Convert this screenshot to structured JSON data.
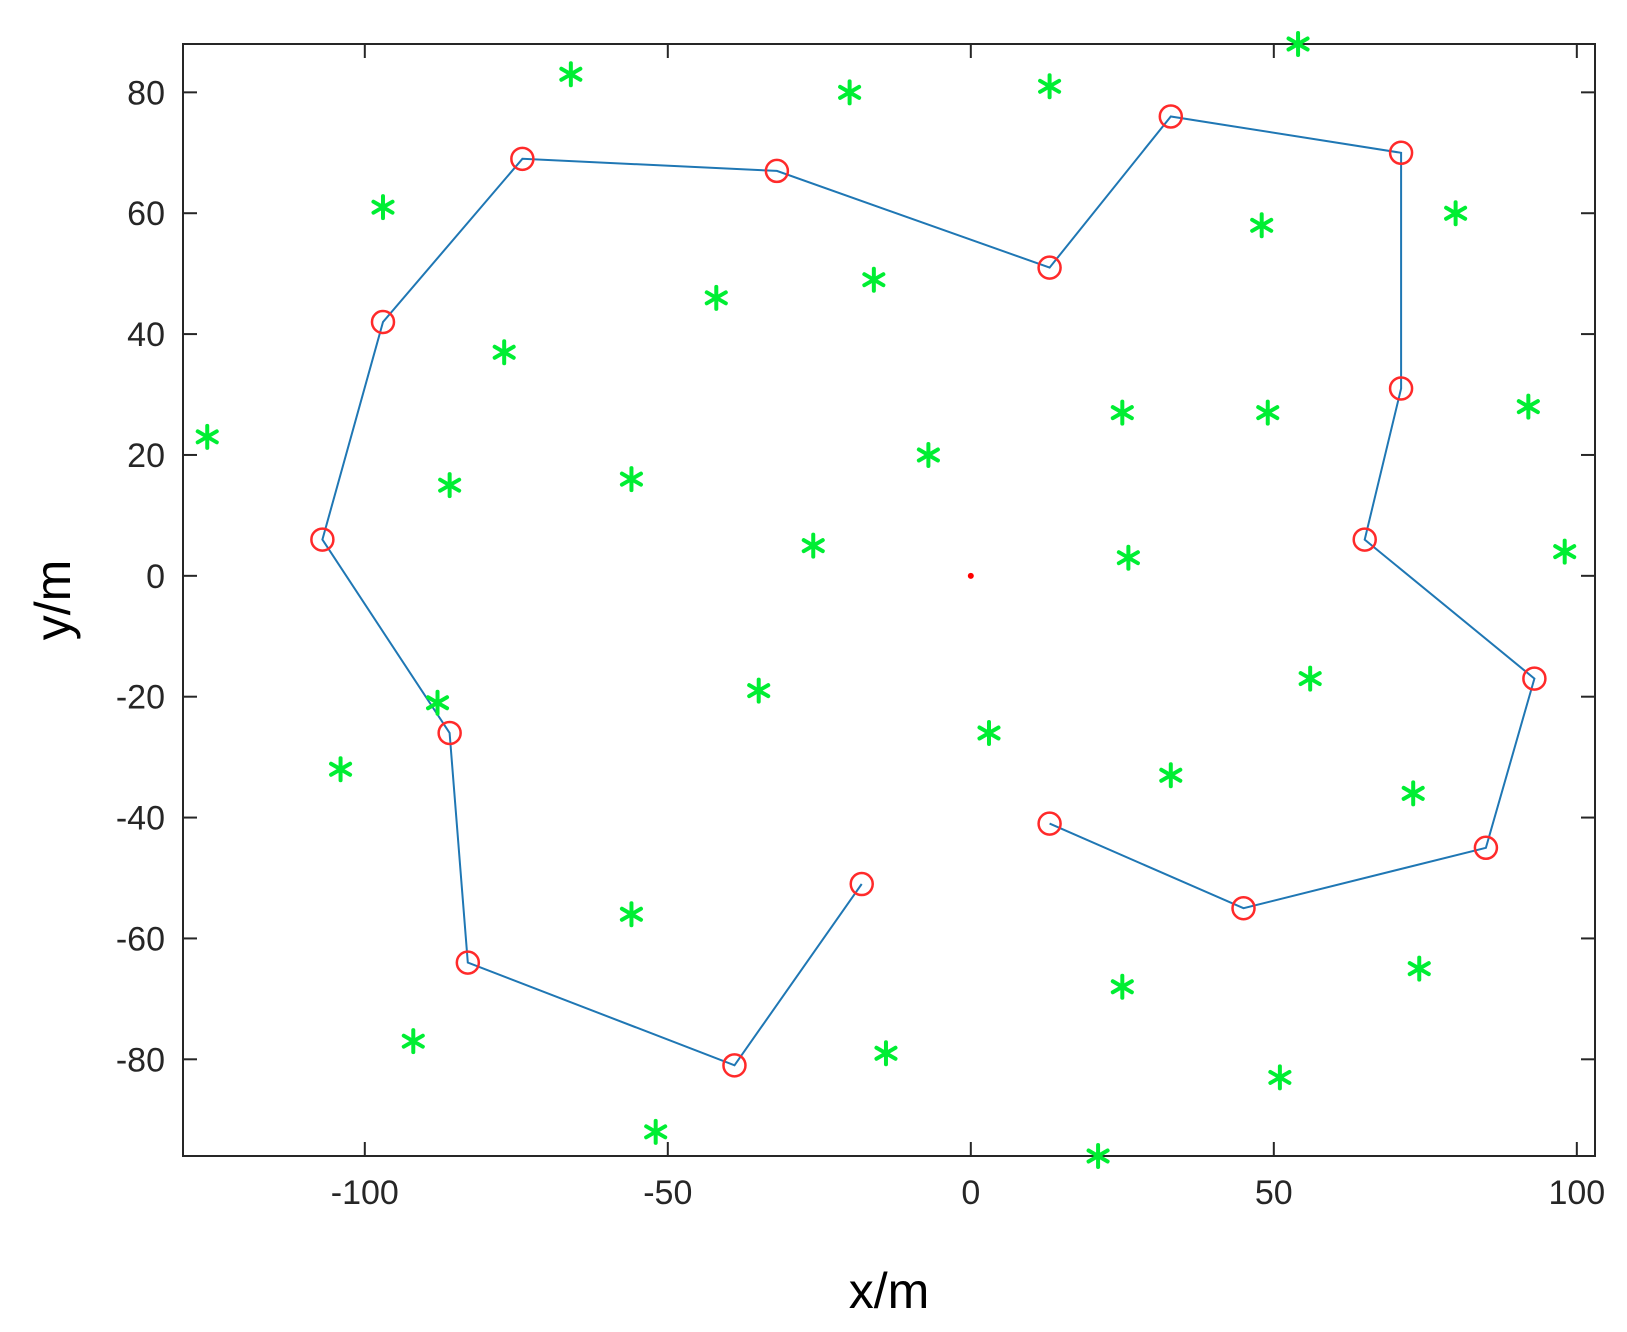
{
  "chart_data": {
    "type": "scatter",
    "xlabel": "x/m",
    "ylabel": "y/m",
    "xlim": [
      -130,
      103
    ],
    "ylim": [
      -96,
      88
    ],
    "xticks": [
      -100,
      -50,
      0,
      50,
      100
    ],
    "yticks": [
      -80,
      -60,
      -40,
      -20,
      0,
      20,
      40,
      60,
      80
    ],
    "grid": false,
    "series": [
      {
        "marker": "asterisk",
        "color": "#00ee33",
        "x": [
          -126,
          -97,
          -66,
          -20,
          13,
          54,
          -77,
          -42,
          -16,
          48,
          80,
          -86,
          -56,
          -7,
          25,
          49,
          92,
          -26,
          26,
          98,
          -88,
          -35,
          3,
          56,
          -104,
          33,
          73,
          -56,
          25,
          74,
          -92,
          -14,
          51,
          -52,
          21
        ],
        "y": [
          23,
          61,
          83,
          80,
          81,
          88,
          37,
          46,
          49,
          58,
          60,
          15,
          16,
          20,
          27,
          27,
          28,
          5,
          3,
          4,
          -21,
          -19,
          -26,
          -17,
          -32,
          -33,
          -36,
          -56,
          -68,
          -65,
          -77,
          -79,
          -83,
          -92,
          -96
        ]
      },
      {
        "marker": "circle",
        "line": true,
        "color": "#ff2a2a",
        "line_color": "#1f77b4",
        "x": [
          -18,
          -39,
          -83,
          -86,
          -107,
          -97,
          -74,
          -32,
          13,
          33,
          71,
          71,
          65,
          93,
          85,
          45,
          13
        ],
        "y": [
          -51,
          -81,
          -64,
          -26,
          6,
          42,
          69,
          67,
          51,
          76,
          70,
          31,
          6,
          -17,
          -45,
          -55,
          -41
        ]
      },
      {
        "marker": "dot",
        "color": "#ff0000",
        "x": [
          0
        ],
        "y": [
          0
        ]
      }
    ]
  }
}
